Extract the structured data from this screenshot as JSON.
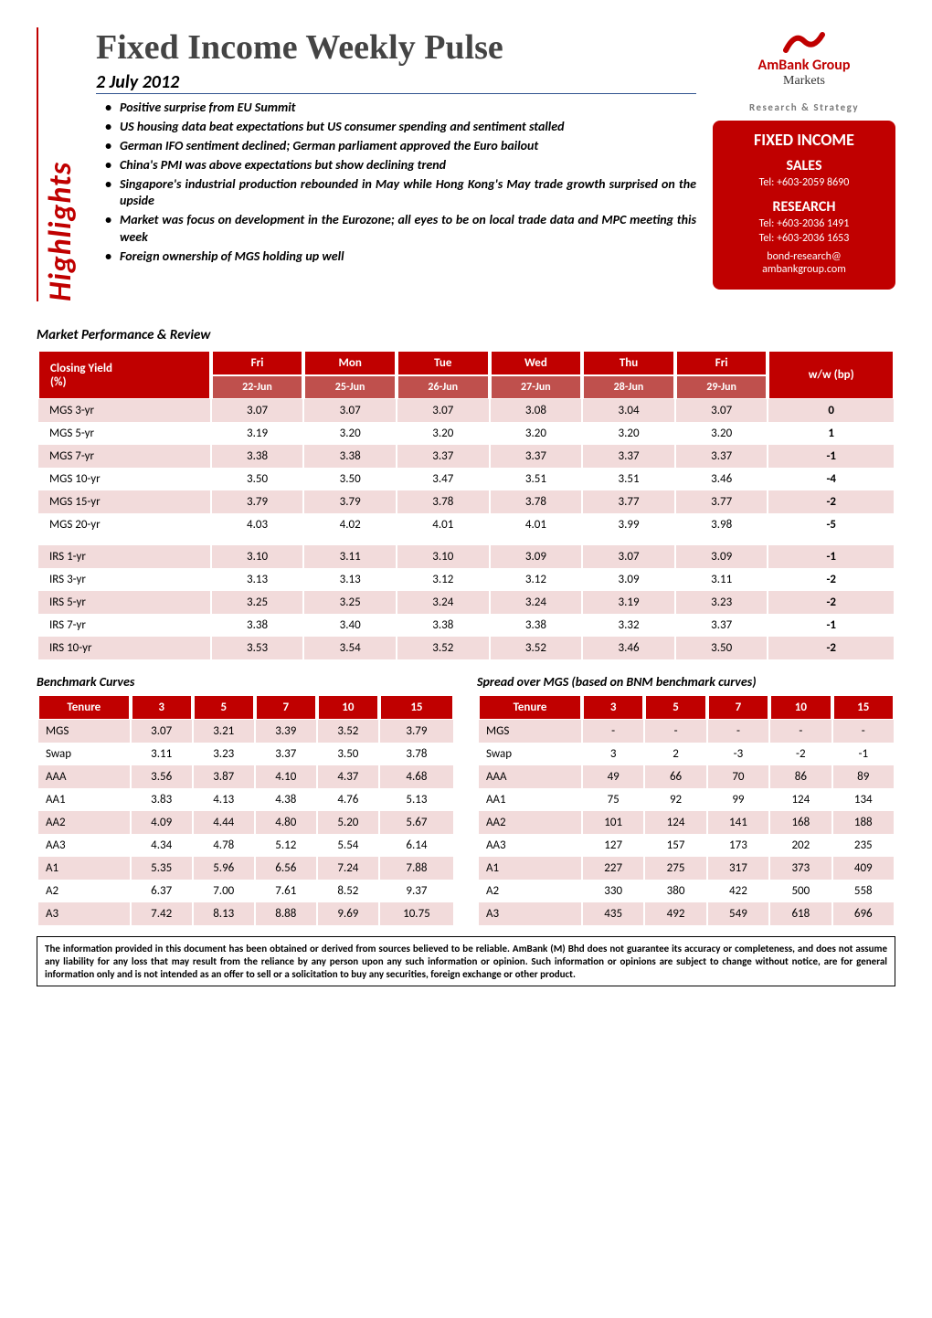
{
  "colors": {
    "brand_red": "#c00000",
    "alt_red": "#bf504d",
    "row_alt": "#f2dbdb",
    "title_gray": "#444444",
    "rs_gray": "#7a7a7a",
    "date_underline": "#31538f"
  },
  "typography": {
    "main_title_family": "Times New Roman",
    "body_family": "Calibri",
    "main_title_size_pt": 28,
    "bullet_size_pt": 11
  },
  "sidebar_label": "Highlights",
  "header": {
    "title": "Fixed Income Weekly Pulse",
    "date": "2 July 2012",
    "bullets": [
      "Positive surprise from EU Summit",
      "US housing data beat expectations but US consumer spending and sentiment stalled",
      "German IFO sentiment declined; German parliament approved the Euro bailout",
      "China's PMI was above expectations but show declining trend",
      "Singapore's industrial production rebounded in May while Hong Kong's May trade growth surprised on the upside",
      "Market was focus on development in the Eurozone; all eyes to be on local trade data and MPC meeting this week",
      "Foreign ownership of MGS holding up well"
    ]
  },
  "brand": {
    "logo_text": "AmBank Group",
    "logo_sub": "Markets",
    "rs_label": "Research & Strategy",
    "box_title": "FIXED INCOME",
    "sales_label": "SALES",
    "sales_tel": "Tel: +603-2059 8690",
    "research_label": "RESEARCH",
    "research_tel1": "Tel: +603-2036 1491",
    "research_tel2": "Tel: +603-2036 1653",
    "email1": "bond-research@",
    "email2": "ambankgroup.com"
  },
  "section_performance": "Market Performance & Review",
  "closing_yield": {
    "header_label": "Closing Yield (%)",
    "ww_label": "w/w (bp)",
    "days": [
      "Fri",
      "Mon",
      "Tue",
      "Wed",
      "Thu",
      "Fri"
    ],
    "dates": [
      "22-Jun",
      "25-Jun",
      "26-Jun",
      "27-Jun",
      "28-Jun",
      "29-Jun"
    ],
    "rows": [
      {
        "label": "MGS 3-yr",
        "vals": [
          "3.07",
          "3.07",
          "3.07",
          "3.08",
          "3.04",
          "3.07"
        ],
        "ww": "0",
        "alt": true
      },
      {
        "label": "MGS 5-yr",
        "vals": [
          "3.19",
          "3.20",
          "3.20",
          "3.20",
          "3.20",
          "3.20"
        ],
        "ww": "1",
        "alt": false
      },
      {
        "label": "MGS 7-yr",
        "vals": [
          "3.38",
          "3.38",
          "3.37",
          "3.37",
          "3.37",
          "3.37"
        ],
        "ww": "-1",
        "alt": true
      },
      {
        "label": "MGS 10-yr",
        "vals": [
          "3.50",
          "3.50",
          "3.47",
          "3.51",
          "3.51",
          "3.46"
        ],
        "ww": "-4",
        "alt": false
      },
      {
        "label": "MGS 15-yr",
        "vals": [
          "3.79",
          "3.79",
          "3.78",
          "3.78",
          "3.77",
          "3.77"
        ],
        "ww": "-2",
        "alt": true
      },
      {
        "label": "MGS 20-yr",
        "vals": [
          "4.03",
          "4.02",
          "4.01",
          "4.01",
          "3.99",
          "3.98"
        ],
        "ww": "-5",
        "alt": false
      }
    ],
    "spacer": true,
    "rows2": [
      {
        "label": "IRS 1-yr",
        "vals": [
          "3.10",
          "3.11",
          "3.10",
          "3.09",
          "3.07",
          "3.09"
        ],
        "ww": "-1",
        "alt": true
      },
      {
        "label": "IRS 3-yr",
        "vals": [
          "3.13",
          "3.13",
          "3.12",
          "3.12",
          "3.09",
          "3.11"
        ],
        "ww": "-2",
        "alt": false
      },
      {
        "label": "IRS 5-yr",
        "vals": [
          "3.25",
          "3.25",
          "3.24",
          "3.24",
          "3.19",
          "3.23"
        ],
        "ww": "-2",
        "alt": true
      },
      {
        "label": "IRS 7-yr",
        "vals": [
          "3.38",
          "3.40",
          "3.38",
          "3.38",
          "3.32",
          "3.37"
        ],
        "ww": "-1",
        "alt": false
      },
      {
        "label": "IRS 10-yr",
        "vals": [
          "3.53",
          "3.54",
          "3.52",
          "3.52",
          "3.46",
          "3.50"
        ],
        "ww": "-2",
        "alt": true
      }
    ]
  },
  "benchmark_title": "Benchmark Curves",
  "spread_title": "Spread over MGS (based on BNM benchmark curves)",
  "benchmark": {
    "tenure_label": "Tenure",
    "tenures": [
      "3",
      "5",
      "7",
      "10",
      "15"
    ],
    "rows": [
      {
        "label": "MGS",
        "vals": [
          "3.07",
          "3.21",
          "3.39",
          "3.52",
          "3.79"
        ],
        "alt": true
      },
      {
        "label": "Swap",
        "vals": [
          "3.11",
          "3.23",
          "3.37",
          "3.50",
          "3.78"
        ],
        "alt": false
      },
      {
        "label": "AAA",
        "vals": [
          "3.56",
          "3.87",
          "4.10",
          "4.37",
          "4.68"
        ],
        "alt": true
      },
      {
        "label": "AA1",
        "vals": [
          "3.83",
          "4.13",
          "4.38",
          "4.76",
          "5.13"
        ],
        "alt": false
      },
      {
        "label": "AA2",
        "vals": [
          "4.09",
          "4.44",
          "4.80",
          "5.20",
          "5.67"
        ],
        "alt": true
      },
      {
        "label": "AA3",
        "vals": [
          "4.34",
          "4.78",
          "5.12",
          "5.54",
          "6.14"
        ],
        "alt": false
      },
      {
        "label": "A1",
        "vals": [
          "5.35",
          "5.96",
          "6.56",
          "7.24",
          "7.88"
        ],
        "alt": true
      },
      {
        "label": "A2",
        "vals": [
          "6.37",
          "7.00",
          "7.61",
          "8.52",
          "9.37"
        ],
        "alt": false
      },
      {
        "label": "A3",
        "vals": [
          "7.42",
          "8.13",
          "8.88",
          "9.69",
          "10.75"
        ],
        "alt": true
      }
    ]
  },
  "spread": {
    "tenure_label": "Tenure",
    "tenures": [
      "3",
      "5",
      "7",
      "10",
      "15"
    ],
    "rows": [
      {
        "label": "MGS",
        "vals": [
          "-",
          "-",
          "-",
          "-",
          "-"
        ],
        "alt": true
      },
      {
        "label": "Swap",
        "vals": [
          "3",
          "2",
          "-3",
          "-2",
          "-1"
        ],
        "alt": false
      },
      {
        "label": "AAA",
        "vals": [
          "49",
          "66",
          "70",
          "86",
          "89"
        ],
        "alt": true
      },
      {
        "label": "AA1",
        "vals": [
          "75",
          "92",
          "99",
          "124",
          "134"
        ],
        "alt": false
      },
      {
        "label": "AA2",
        "vals": [
          "101",
          "124",
          "141",
          "168",
          "188"
        ],
        "alt": true
      },
      {
        "label": "AA3",
        "vals": [
          "127",
          "157",
          "173",
          "202",
          "235"
        ],
        "alt": false
      },
      {
        "label": "A1",
        "vals": [
          "227",
          "275",
          "317",
          "373",
          "409"
        ],
        "alt": true
      },
      {
        "label": "A2",
        "vals": [
          "330",
          "380",
          "422",
          "500",
          "558"
        ],
        "alt": false
      },
      {
        "label": "A3",
        "vals": [
          "435",
          "492",
          "549",
          "618",
          "696"
        ],
        "alt": true
      }
    ]
  },
  "disclaimer": "The information provided in this document has been obtained or derived from sources believed to be reliable. AmBank (M) Bhd does not guarantee its accuracy or completeness, and does not assume any liability for any loss that may result from the reliance by any person upon any such information or opinion. Such information or opinions are subject to change without notice, are for general information only and is not intended as an offer to sell or a solicitation to buy any securities, foreign exchange or other product."
}
